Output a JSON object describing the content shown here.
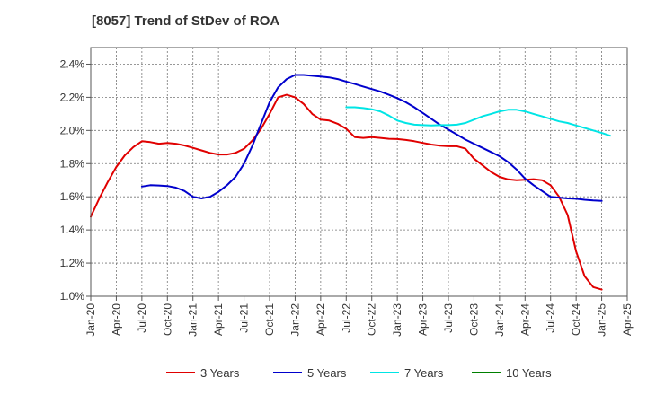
{
  "chart_data": {
    "type": "line",
    "title": "[8057]  Trend of StDev of ROA",
    "xlabel": "",
    "ylabel": "",
    "x_ticks": [
      "Jan-20",
      "Apr-20",
      "Jul-20",
      "Oct-20",
      "Jan-21",
      "Apr-21",
      "Jul-21",
      "Oct-21",
      "Jan-22",
      "Apr-22",
      "Jul-22",
      "Oct-22",
      "Jan-23",
      "Apr-23",
      "Jul-23",
      "Oct-23",
      "Jan-24",
      "Apr-24",
      "Jul-24",
      "Oct-24",
      "Jan-25",
      "Apr-25"
    ],
    "y_ticks": [
      "1.0%",
      "1.2%",
      "1.4%",
      "1.6%",
      "1.8%",
      "2.0%",
      "2.2%",
      "2.4%"
    ],
    "ylim": [
      1.0,
      2.5
    ],
    "xlim": [
      "Jan-20",
      "Apr-25"
    ],
    "grid": true,
    "legend_position": "bottom",
    "series": [
      {
        "name": "3 Years",
        "color": "#e00000",
        "points": [
          [
            "Jan-20",
            1.48
          ],
          [
            "Feb-20",
            1.59
          ],
          [
            "Mar-20",
            1.69
          ],
          [
            "Apr-20",
            1.78
          ],
          [
            "May-20",
            1.85
          ],
          [
            "Jun-20",
            1.9
          ],
          [
            "Jul-20",
            1.935
          ],
          [
            "Aug-20",
            1.93
          ],
          [
            "Sep-20",
            1.92
          ],
          [
            "Oct-20",
            1.925
          ],
          [
            "Nov-20",
            1.92
          ],
          [
            "Dec-20",
            1.91
          ],
          [
            "Jan-21",
            1.895
          ],
          [
            "Feb-21",
            1.88
          ],
          [
            "Mar-21",
            1.865
          ],
          [
            "Apr-21",
            1.855
          ],
          [
            "May-21",
            1.855
          ],
          [
            "Jun-21",
            1.865
          ],
          [
            "Jul-21",
            1.89
          ],
          [
            "Aug-21",
            1.94
          ],
          [
            "Sep-21",
            2.01
          ],
          [
            "Oct-21",
            2.1
          ],
          [
            "Nov-21",
            2.2
          ],
          [
            "Dec-21",
            2.215
          ],
          [
            "Jan-22",
            2.2
          ],
          [
            "Feb-22",
            2.16
          ],
          [
            "Mar-22",
            2.1
          ],
          [
            "Apr-22",
            2.065
          ],
          [
            "May-22",
            2.06
          ],
          [
            "Jun-22",
            2.04
          ],
          [
            "Jul-22",
            2.01
          ],
          [
            "Aug-22",
            1.96
          ],
          [
            "Sep-22",
            1.955
          ],
          [
            "Oct-22",
            1.96
          ],
          [
            "Nov-22",
            1.955
          ],
          [
            "Dec-22",
            1.95
          ],
          [
            "Jan-23",
            1.948
          ],
          [
            "Feb-23",
            1.943
          ],
          [
            "Mar-23",
            1.935
          ],
          [
            "Apr-23",
            1.925
          ],
          [
            "May-23",
            1.915
          ],
          [
            "Jun-23",
            1.908
          ],
          [
            "Jul-23",
            1.905
          ],
          [
            "Aug-23",
            1.905
          ],
          [
            "Sep-23",
            1.89
          ],
          [
            "Oct-23",
            1.83
          ],
          [
            "Nov-23",
            1.79
          ],
          [
            "Dec-23",
            1.75
          ],
          [
            "Jan-24",
            1.72
          ],
          [
            "Feb-24",
            1.705
          ],
          [
            "Mar-24",
            1.7
          ],
          [
            "Apr-24",
            1.703
          ],
          [
            "May-24",
            1.706
          ],
          [
            "Jun-24",
            1.7
          ],
          [
            "Jul-24",
            1.67
          ],
          [
            "Aug-24",
            1.6
          ],
          [
            "Sep-24",
            1.49
          ],
          [
            "Oct-24",
            1.27
          ],
          [
            "Nov-24",
            1.12
          ],
          [
            "Dec-24",
            1.055
          ],
          [
            "Jan-25",
            1.04
          ]
        ]
      },
      {
        "name": "5 Years",
        "color": "#0000cc",
        "points": [
          [
            "Jul-20",
            1.662
          ],
          [
            "Aug-20",
            1.67
          ],
          [
            "Sep-20",
            1.668
          ],
          [
            "Oct-20",
            1.665
          ],
          [
            "Nov-20",
            1.655
          ],
          [
            "Dec-20",
            1.635
          ],
          [
            "Jan-21",
            1.6
          ],
          [
            "Feb-21",
            1.59
          ],
          [
            "Mar-21",
            1.6
          ],
          [
            "Apr-21",
            1.63
          ],
          [
            "May-21",
            1.67
          ],
          [
            "Jun-21",
            1.72
          ],
          [
            "Jul-21",
            1.8
          ],
          [
            "Aug-21",
            1.91
          ],
          [
            "Sep-21",
            2.04
          ],
          [
            "Oct-21",
            2.17
          ],
          [
            "Nov-21",
            2.26
          ],
          [
            "Dec-21",
            2.31
          ],
          [
            "Jan-22",
            2.335
          ],
          [
            "Feb-22",
            2.335
          ],
          [
            "Mar-22",
            2.33
          ],
          [
            "Apr-22",
            2.325
          ],
          [
            "May-22",
            2.32
          ],
          [
            "Jun-22",
            2.31
          ],
          [
            "Jul-22",
            2.295
          ],
          [
            "Aug-22",
            2.28
          ],
          [
            "Sep-22",
            2.265
          ],
          [
            "Oct-22",
            2.25
          ],
          [
            "Nov-22",
            2.235
          ],
          [
            "Dec-22",
            2.215
          ],
          [
            "Jan-23",
            2.195
          ],
          [
            "Feb-23",
            2.17
          ],
          [
            "Mar-23",
            2.14
          ],
          [
            "Apr-23",
            2.105
          ],
          [
            "May-23",
            2.07
          ],
          [
            "Jun-23",
            2.035
          ],
          [
            "Jul-23",
            2.005
          ],
          [
            "Aug-23",
            1.975
          ],
          [
            "Sep-23",
            1.945
          ],
          [
            "Oct-23",
            1.92
          ],
          [
            "Nov-23",
            1.895
          ],
          [
            "Dec-23",
            1.87
          ],
          [
            "Jan-24",
            1.845
          ],
          [
            "Feb-24",
            1.81
          ],
          [
            "Mar-24",
            1.765
          ],
          [
            "Apr-24",
            1.71
          ],
          [
            "May-24",
            1.67
          ],
          [
            "Jun-24",
            1.635
          ],
          [
            "Jul-24",
            1.6
          ],
          [
            "Aug-24",
            1.595
          ],
          [
            "Sep-24",
            1.59
          ],
          [
            "Oct-24",
            1.588
          ],
          [
            "Nov-24",
            1.582
          ],
          [
            "Dec-24",
            1.578
          ],
          [
            "Jan-25",
            1.575
          ]
        ]
      },
      {
        "name": "7 Years",
        "color": "#00e5e5",
        "points": [
          [
            "Jul-22",
            2.14
          ],
          [
            "Aug-22",
            2.14
          ],
          [
            "Sep-22",
            2.135
          ],
          [
            "Oct-22",
            2.128
          ],
          [
            "Nov-22",
            2.115
          ],
          [
            "Dec-22",
            2.09
          ],
          [
            "Jan-23",
            2.06
          ],
          [
            "Feb-23",
            2.045
          ],
          [
            "Mar-23",
            2.035
          ],
          [
            "Apr-23",
            2.032
          ],
          [
            "May-23",
            2.03
          ],
          [
            "Jun-23",
            2.032
          ],
          [
            "Jul-23",
            2.032
          ],
          [
            "Aug-23",
            2.035
          ],
          [
            "Sep-23",
            2.045
          ],
          [
            "Oct-23",
            2.065
          ],
          [
            "Nov-23",
            2.085
          ],
          [
            "Dec-23",
            2.1
          ],
          [
            "Jan-24",
            2.115
          ],
          [
            "Feb-24",
            2.125
          ],
          [
            "Mar-24",
            2.125
          ],
          [
            "Apr-24",
            2.115
          ],
          [
            "May-24",
            2.1
          ],
          [
            "Jun-24",
            2.085
          ],
          [
            "Jul-24",
            2.07
          ],
          [
            "Aug-24",
            2.055
          ],
          [
            "Sep-24",
            2.045
          ],
          [
            "Oct-24",
            2.03
          ],
          [
            "Nov-24",
            2.015
          ],
          [
            "Dec-24",
            2.0
          ],
          [
            "Jan-25",
            1.985
          ],
          [
            "Feb-25",
            1.968
          ]
        ]
      },
      {
        "name": "10 Years",
        "color": "#008000",
        "points": []
      }
    ]
  }
}
